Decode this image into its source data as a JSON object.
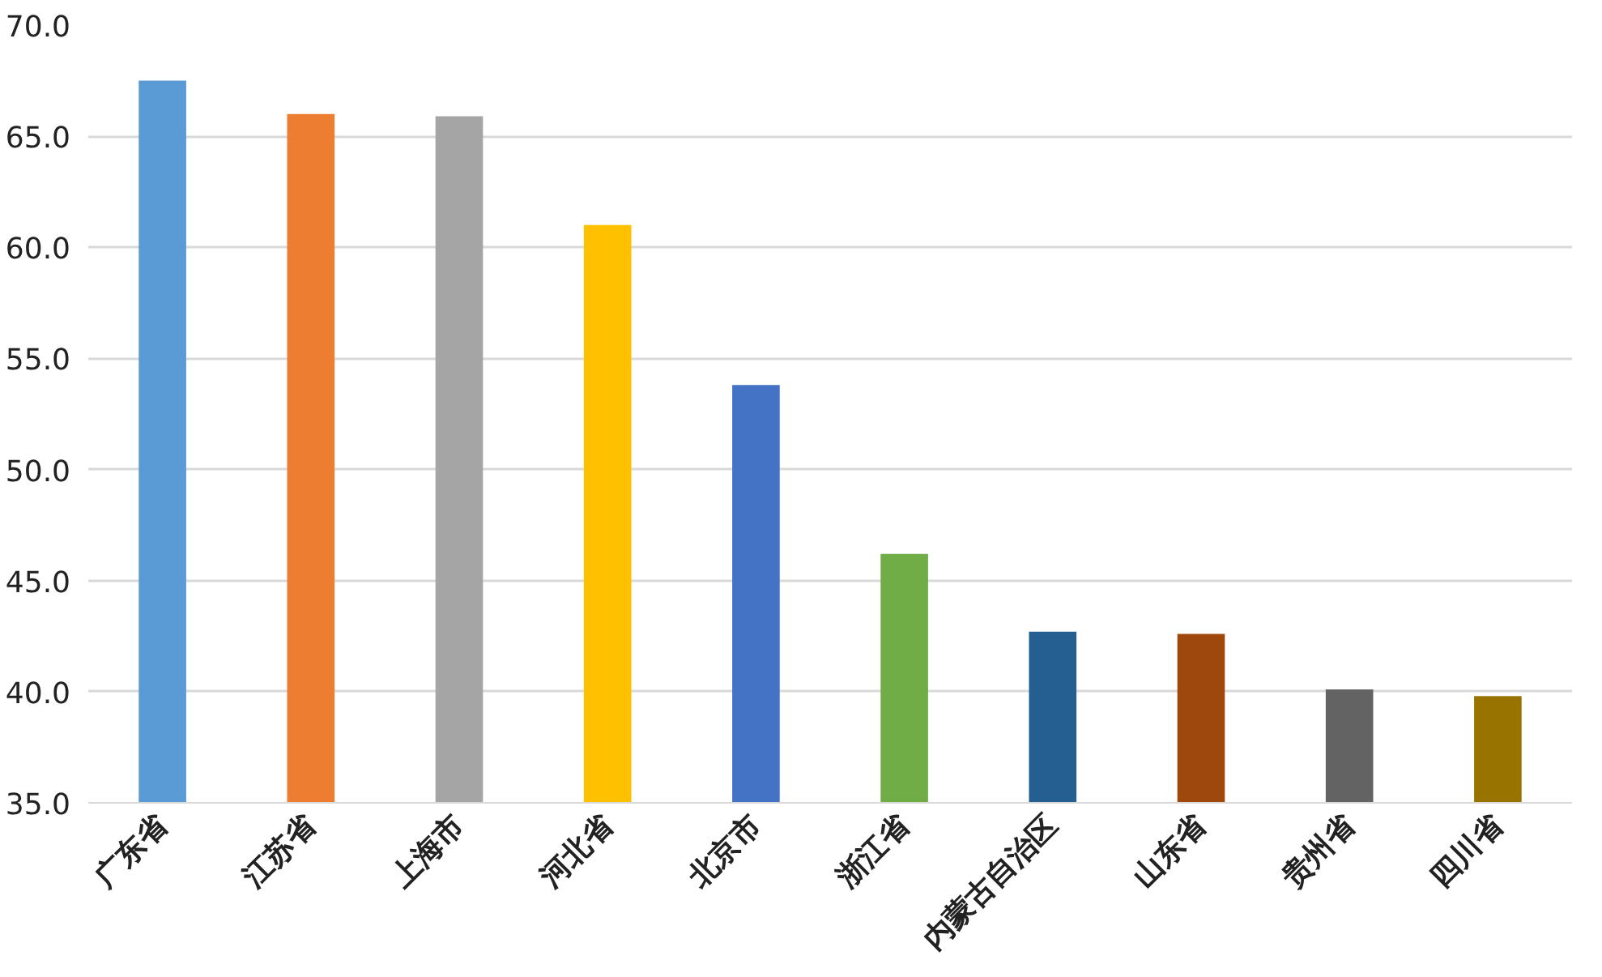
{
  "chart_data": {
    "type": "bar",
    "categories": [
      "广东省",
      "江苏省",
      "上海市",
      "河北省",
      "北京市",
      "浙江省",
      "内蒙古自治区",
      "山东省",
      "贵州省",
      "四川省"
    ],
    "values": [
      67.5,
      66.0,
      65.9,
      61.0,
      53.8,
      46.2,
      42.7,
      42.6,
      40.1,
      39.8
    ],
    "colors": [
      "#5b9bd5",
      "#ed7d31",
      "#a5a5a5",
      "#ffc000",
      "#4472c4",
      "#70ad47",
      "#255e91",
      "#9e480e",
      "#636363",
      "#997300"
    ],
    "ylim": [
      35,
      70
    ],
    "yticks": [
      {
        "value": 35,
        "label": "35.0"
      },
      {
        "value": 40,
        "label": "40.0"
      },
      {
        "value": 45,
        "label": "45.0"
      },
      {
        "value": 50,
        "label": "50.0"
      },
      {
        "value": 55,
        "label": "55.0"
      },
      {
        "value": 60,
        "label": "60.0"
      },
      {
        "value": 65,
        "label": "65.0"
      },
      {
        "value": 70,
        "label": "70.0"
      }
    ],
    "grid": "y"
  }
}
